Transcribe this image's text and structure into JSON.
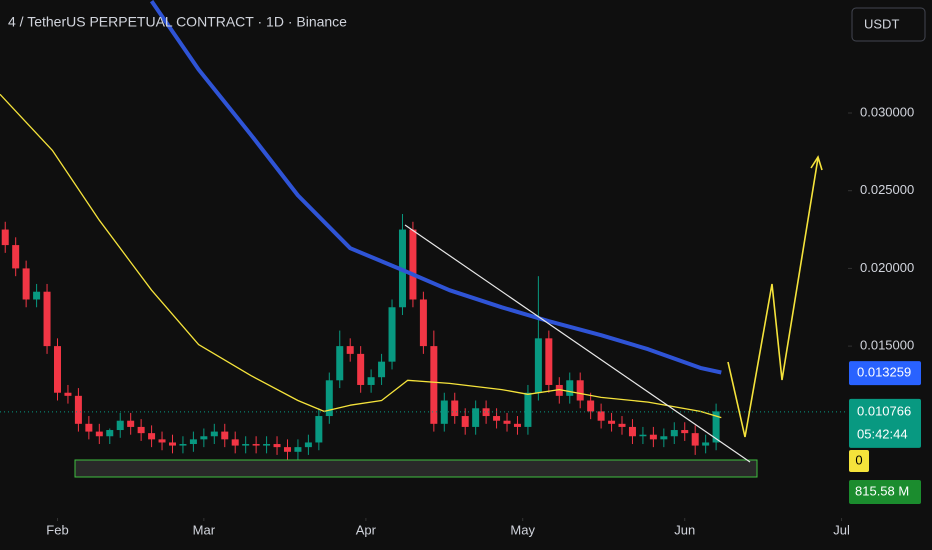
{
  "chart_data": {
    "type": "candlestick",
    "title": "4 / TetherUS PERPETUAL CONTRACT · 1D · Binance",
    "currency": "USDT",
    "xlim": [
      20,
      183
    ],
    "ylim": [
      0.00394,
      0.03727
    ],
    "xticks": [
      {
        "value": 31,
        "label": "Feb"
      },
      {
        "value": 59,
        "label": "Mar"
      },
      {
        "value": 90,
        "label": "Apr"
      },
      {
        "value": 120,
        "label": "May"
      },
      {
        "value": 151,
        "label": "Jun"
      },
      {
        "value": 181,
        "label": "Jul"
      }
    ],
    "yticks": [
      {
        "value": 0.015,
        "label": "0.015000"
      },
      {
        "value": 0.02,
        "label": "0.020000"
      },
      {
        "value": 0.025,
        "label": "0.025000"
      },
      {
        "value": 0.03,
        "label": "0.030000"
      }
    ],
    "up_color": "#089981",
    "down_color": "#f23645",
    "x": [
      21,
      23,
      25,
      27,
      29,
      31,
      33,
      35,
      37,
      39,
      41,
      43,
      45,
      47,
      49,
      51,
      53,
      55,
      57,
      59,
      61,
      63,
      65,
      67,
      69,
      71,
      73,
      75,
      77,
      79,
      81,
      83,
      85,
      87,
      89,
      91,
      93,
      95,
      97,
      99,
      101,
      103,
      105,
      107,
      109,
      111,
      113,
      115,
      117,
      119,
      121,
      123,
      125,
      127,
      129,
      131,
      133,
      135,
      137,
      139,
      141,
      143,
      145,
      147,
      149,
      151,
      153,
      155,
      157
    ],
    "open": [
      0.0225,
      0.0215,
      0.02,
      0.018,
      0.0185,
      0.015,
      0.012,
      0.0118,
      0.01,
      0.0095,
      0.0092,
      0.0096,
      0.0102,
      0.0098,
      0.0094,
      0.009,
      0.0088,
      0.0086,
      0.0087,
      0.009,
      0.0092,
      0.0095,
      0.009,
      0.0086,
      0.0087,
      0.0086,
      0.0087,
      0.0085,
      0.0082,
      0.0085,
      0.0088,
      0.0105,
      0.0128,
      0.015,
      0.0145,
      0.0125,
      0.013,
      0.014,
      0.0175,
      0.0225,
      0.018,
      0.015,
      0.01,
      0.0115,
      0.0105,
      0.0098,
      0.011,
      0.0105,
      0.0102,
      0.01,
      0.0098,
      0.012,
      0.0155,
      0.0125,
      0.0118,
      0.0128,
      0.0115,
      0.0108,
      0.0102,
      0.01,
      0.0098,
      0.0092,
      0.0093,
      0.009,
      0.0092,
      0.0096,
      0.0094,
      0.0086,
      0.0088
    ],
    "high": [
      0.023,
      0.022,
      0.0205,
      0.019,
      0.019,
      0.0155,
      0.0125,
      0.0123,
      0.0105,
      0.01,
      0.0097,
      0.0107,
      0.0107,
      0.0103,
      0.0099,
      0.0095,
      0.0093,
      0.0092,
      0.0095,
      0.0097,
      0.01,
      0.01,
      0.0095,
      0.0092,
      0.0092,
      0.0092,
      0.0092,
      0.009,
      0.009,
      0.0093,
      0.011,
      0.0133,
      0.016,
      0.0155,
      0.015,
      0.0135,
      0.0145,
      0.018,
      0.0235,
      0.023,
      0.0185,
      0.016,
      0.012,
      0.012,
      0.011,
      0.0115,
      0.0115,
      0.011,
      0.0107,
      0.0105,
      0.0125,
      0.0195,
      0.016,
      0.013,
      0.0133,
      0.0133,
      0.012,
      0.0113,
      0.0107,
      0.0105,
      0.0103,
      0.0098,
      0.0098,
      0.0097,
      0.0101,
      0.0101,
      0.0099,
      0.0093,
      0.0113
    ],
    "low": [
      0.021,
      0.0195,
      0.0175,
      0.0175,
      0.0145,
      0.0115,
      0.0113,
      0.0095,
      0.009,
      0.0087,
      0.0087,
      0.0091,
      0.0093,
      0.0089,
      0.0085,
      0.0083,
      0.0081,
      0.0081,
      0.0082,
      0.0085,
      0.0087,
      0.0085,
      0.0081,
      0.0081,
      0.0081,
      0.0081,
      0.008,
      0.0077,
      0.0077,
      0.008,
      0.0083,
      0.01,
      0.0123,
      0.014,
      0.012,
      0.012,
      0.0125,
      0.0135,
      0.017,
      0.0175,
      0.0145,
      0.0095,
      0.0095,
      0.01,
      0.0093,
      0.0093,
      0.01,
      0.0097,
      0.0095,
      0.0093,
      0.0093,
      0.0115,
      0.012,
      0.0113,
      0.0113,
      0.011,
      0.0103,
      0.0097,
      0.0095,
      0.0093,
      0.0087,
      0.0087,
      0.0085,
      0.0085,
      0.0087,
      0.0089,
      0.008,
      0.0081,
      0.0083
    ],
    "close": [
      0.0215,
      0.02,
      0.018,
      0.0185,
      0.015,
      0.012,
      0.0118,
      0.01,
      0.0095,
      0.0092,
      0.0096,
      0.0102,
      0.0098,
      0.0094,
      0.009,
      0.0088,
      0.0086,
      0.0087,
      0.009,
      0.0092,
      0.0095,
      0.009,
      0.0086,
      0.0087,
      0.0086,
      0.0087,
      0.0085,
      0.0082,
      0.0085,
      0.0088,
      0.0105,
      0.0128,
      0.015,
      0.0145,
      0.0125,
      0.013,
      0.014,
      0.0175,
      0.0225,
      0.018,
      0.015,
      0.01,
      0.0115,
      0.0105,
      0.0098,
      0.011,
      0.0105,
      0.0102,
      0.01,
      0.0098,
      0.012,
      0.0155,
      0.0125,
      0.0118,
      0.0128,
      0.0115,
      0.0108,
      0.0102,
      0.01,
      0.0098,
      0.0092,
      0.0093,
      0.009,
      0.0092,
      0.0096,
      0.0094,
      0.0086,
      0.0088,
      0.0108
    ],
    "lines": [
      {
        "color": "#2f54d6",
        "width": 4,
        "x": [
          49,
          58,
          68,
          77,
          87,
          97,
          106,
          116,
          125,
          135,
          144,
          154,
          158
        ],
        "values": [
          0.0372,
          0.0328,
          0.0286,
          0.0247,
          0.0213,
          0.0199,
          0.0186,
          0.0175,
          0.0166,
          0.0157,
          0.0148,
          0.0136,
          0.0133
        ]
      },
      {
        "color": "#f5e33b",
        "width": 1.3,
        "x": [
          20,
          30,
          39,
          49,
          58,
          68,
          77,
          82,
          87,
          93,
          98,
          106,
          116,
          121,
          127,
          135,
          144,
          154,
          158
        ],
        "values": [
          0.0312,
          0.0276,
          0.0231,
          0.0186,
          0.0151,
          0.0131,
          0.0115,
          0.0108,
          0.0112,
          0.0115,
          0.0128,
          0.0126,
          0.0122,
          0.0119,
          0.0122,
          0.0117,
          0.0114,
          0.0108,
          0.0104
        ]
      }
    ],
    "price_labels": [
      {
        "value": 0.013259,
        "label": "0.013259",
        "color": "#2962ff"
      },
      {
        "value": 0.010766,
        "label": "0.010766",
        "color": "#089981"
      }
    ],
    "countdown": "05:42:44",
    "indicator_label": "0",
    "volume_label": "815.58 M"
  }
}
